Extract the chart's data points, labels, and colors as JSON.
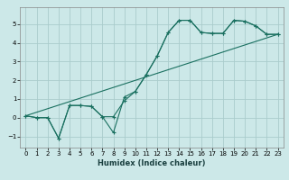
{
  "xlabel": "Humidex (Indice chaleur)",
  "background_color": "#cce8e8",
  "grid_color": "#aacccc",
  "line_color": "#1a7060",
  "xlim": [
    -0.5,
    23.5
  ],
  "ylim": [
    -1.6,
    5.9
  ],
  "xticks": [
    0,
    1,
    2,
    3,
    4,
    5,
    6,
    7,
    8,
    9,
    10,
    11,
    12,
    13,
    14,
    15,
    16,
    17,
    18,
    19,
    20,
    21,
    22,
    23
  ],
  "yticks": [
    -1,
    0,
    1,
    2,
    3,
    4,
    5
  ],
  "zigzag_x": [
    0,
    1,
    2,
    3,
    4,
    5,
    6,
    7,
    8,
    9,
    10,
    11,
    12,
    13,
    14,
    15,
    16,
    17,
    18,
    19,
    20,
    21,
    22,
    23
  ],
  "zigzag_y": [
    0.1,
    0.0,
    0.0,
    -1.1,
    0.65,
    0.65,
    0.6,
    0.05,
    -0.8,
    1.1,
    1.4,
    2.3,
    3.3,
    4.55,
    5.2,
    5.2,
    4.55,
    4.5,
    4.5,
    5.2,
    5.15,
    4.9,
    4.45,
    4.45
  ],
  "smooth_x": [
    0,
    1,
    2,
    3,
    4,
    5,
    6,
    7,
    8,
    9,
    10,
    11,
    12,
    13,
    14,
    15,
    16,
    17,
    18,
    19,
    20,
    21,
    22,
    23
  ],
  "smooth_y": [
    0.1,
    0.0,
    0.0,
    -1.1,
    0.65,
    0.65,
    0.6,
    0.05,
    0.05,
    0.9,
    1.4,
    2.3,
    3.3,
    4.55,
    5.2,
    5.2,
    4.55,
    4.5,
    4.5,
    5.2,
    5.15,
    4.9,
    4.45,
    4.45
  ],
  "trend_x": [
    0,
    23
  ],
  "trend_y": [
    0.1,
    4.45
  ],
  "tick_labelsize": 5.0,
  "xlabel_fontsize": 6.0
}
